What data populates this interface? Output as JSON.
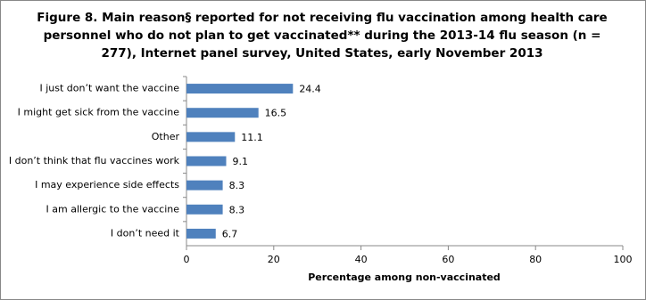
{
  "chart_data": {
    "type": "bar",
    "orientation": "horizontal",
    "title": "Figure 8. Main reason§ reported for not receiving flu vaccination among health care personnel who do not plan to get vaccinated** during the 2013-14 flu season (n = 277), Internet panel survey, United States, early November 2013",
    "x_label": "Percentage among non-vaccinated",
    "categories": [
      "I just don’t want the vaccine",
      "I might get sick from the vaccine",
      "Other",
      "I don’t think that flu vaccines work",
      "I may experience side effects",
      "I am allergic to the vaccine",
      "I don’t need it"
    ],
    "values": [
      24.4,
      16.5,
      11.1,
      9.1,
      8.3,
      8.3,
      6.7
    ],
    "color": "#4f81bd",
    "xlim": [
      0,
      100
    ],
    "xticks": [
      0,
      20,
      40,
      60,
      80,
      100
    ],
    "grid": false
  }
}
